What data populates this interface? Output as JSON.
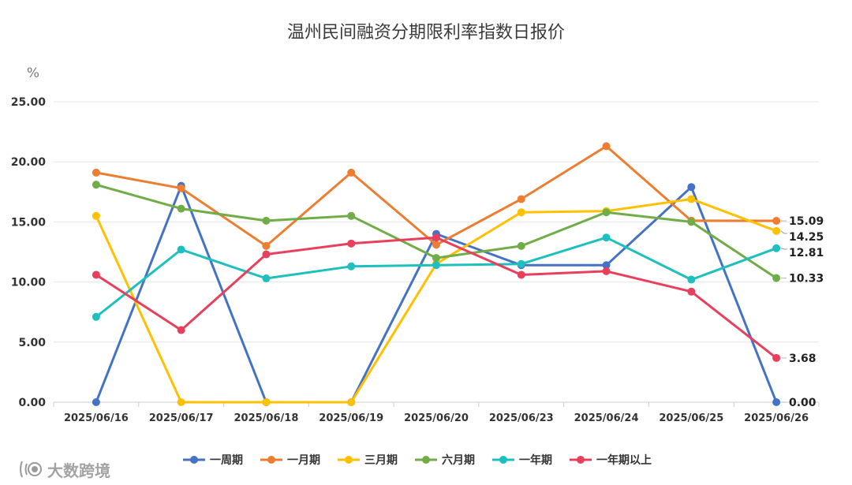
{
  "chart_data": {
    "type": "line",
    "title": "温州民间融资分期限利率指数日报价",
    "unit": "%",
    "categories": [
      "2025/06/16",
      "2025/06/17",
      "2025/06/18",
      "2025/06/19",
      "2025/06/20",
      "2025/06/23",
      "2025/06/24",
      "2025/06/25",
      "2025/06/26"
    ],
    "ylim": [
      0,
      25
    ],
    "yticks": [
      "0.00",
      "5.00",
      "10.00",
      "15.00",
      "20.00",
      "25.00"
    ],
    "grid": true,
    "legend_position": "bottom",
    "series": [
      {
        "name": "一周期",
        "color": "#4472C4",
        "values": [
          0,
          18.0,
          0,
          0,
          14.0,
          11.4,
          11.4,
          17.9,
          0
        ],
        "end_label": "0.00"
      },
      {
        "name": "一月期",
        "color": "#ED7D31",
        "values": [
          19.1,
          17.8,
          13.0,
          19.1,
          13.1,
          16.9,
          21.3,
          15.1,
          15.09
        ],
        "end_label": "15.09"
      },
      {
        "name": "三月期",
        "color": "#FFC000",
        "values": [
          15.5,
          0,
          0,
          0,
          11.5,
          15.8,
          15.9,
          16.9,
          14.25
        ],
        "end_label": "14.25"
      },
      {
        "name": "六月期",
        "color": "#70AD47",
        "values": [
          18.1,
          16.1,
          15.1,
          15.5,
          12.0,
          13.0,
          15.8,
          15.0,
          10.33
        ],
        "end_label": "10.33"
      },
      {
        "name": "一年期",
        "color": "#1DBFBF",
        "values": [
          7.1,
          12.7,
          10.3,
          11.3,
          11.4,
          11.5,
          13.7,
          10.2,
          12.81
        ],
        "end_label": "12.81"
      },
      {
        "name": "一年期以上",
        "color": "#E8405C",
        "values": [
          10.6,
          6.0,
          12.3,
          13.2,
          13.7,
          10.6,
          10.9,
          9.2,
          3.68
        ],
        "end_label": "3.68"
      }
    ]
  },
  "watermark": {
    "icon": "sound-wave-icon",
    "text": "大数跨境"
  }
}
